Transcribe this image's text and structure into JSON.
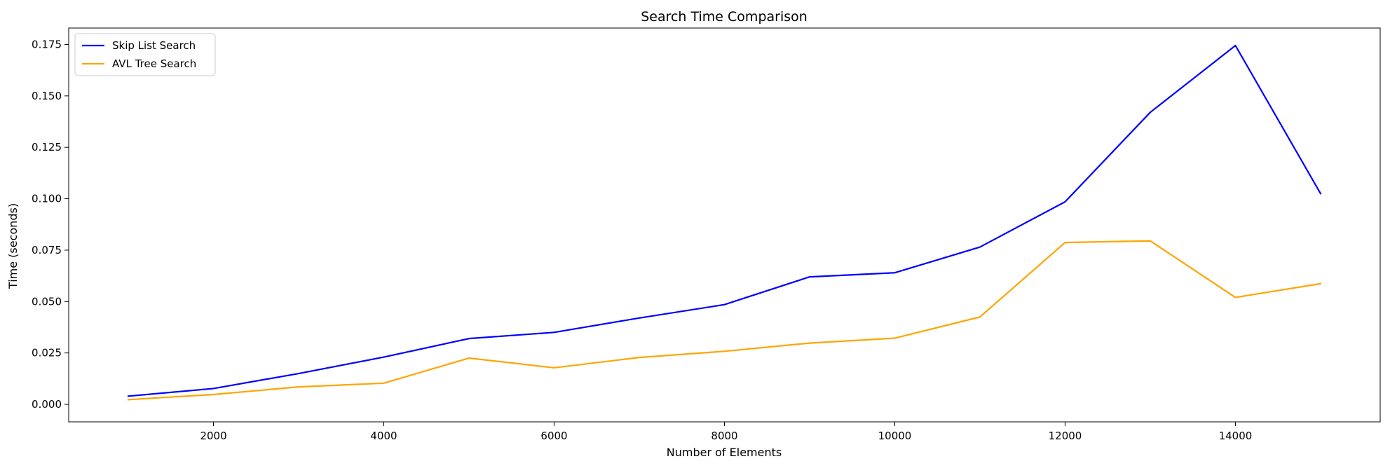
{
  "chart_data": {
    "type": "line",
    "title": "Search Time Comparison",
    "xlabel": "Number of Elements",
    "ylabel": "Time (seconds)",
    "xlim": [
      300,
      15700
    ],
    "ylim": [
      -0.0085,
      0.183
    ],
    "xticks": [
      2000,
      4000,
      6000,
      8000,
      10000,
      12000,
      14000
    ],
    "yticks": [
      0.0,
      0.025,
      0.05,
      0.075,
      0.1,
      0.125,
      0.15,
      0.175
    ],
    "ytick_labels": [
      "0.000",
      "0.025",
      "0.050",
      "0.075",
      "0.100",
      "0.125",
      "0.150",
      "0.175"
    ],
    "grid": false,
    "legend": "top-left",
    "x": [
      1000,
      2000,
      3000,
      4000,
      5000,
      6000,
      7000,
      8000,
      9000,
      10000,
      11000,
      12000,
      13000,
      14000,
      15000
    ],
    "series": [
      {
        "name": "Skip List Search",
        "color": "#0000ff",
        "values": [
          0.004,
          0.0077,
          0.015,
          0.023,
          0.032,
          0.035,
          0.042,
          0.0485,
          0.062,
          0.064,
          0.0765,
          0.0985,
          0.142,
          0.1745,
          0.1025
        ]
      },
      {
        "name": "AVL Tree Search",
        "color": "#ffa500",
        "values": [
          0.0023,
          0.0048,
          0.0085,
          0.0103,
          0.0225,
          0.0178,
          0.0228,
          0.0258,
          0.0298,
          0.0322,
          0.0425,
          0.0787,
          0.0795,
          0.052,
          0.0587
        ]
      }
    ]
  }
}
